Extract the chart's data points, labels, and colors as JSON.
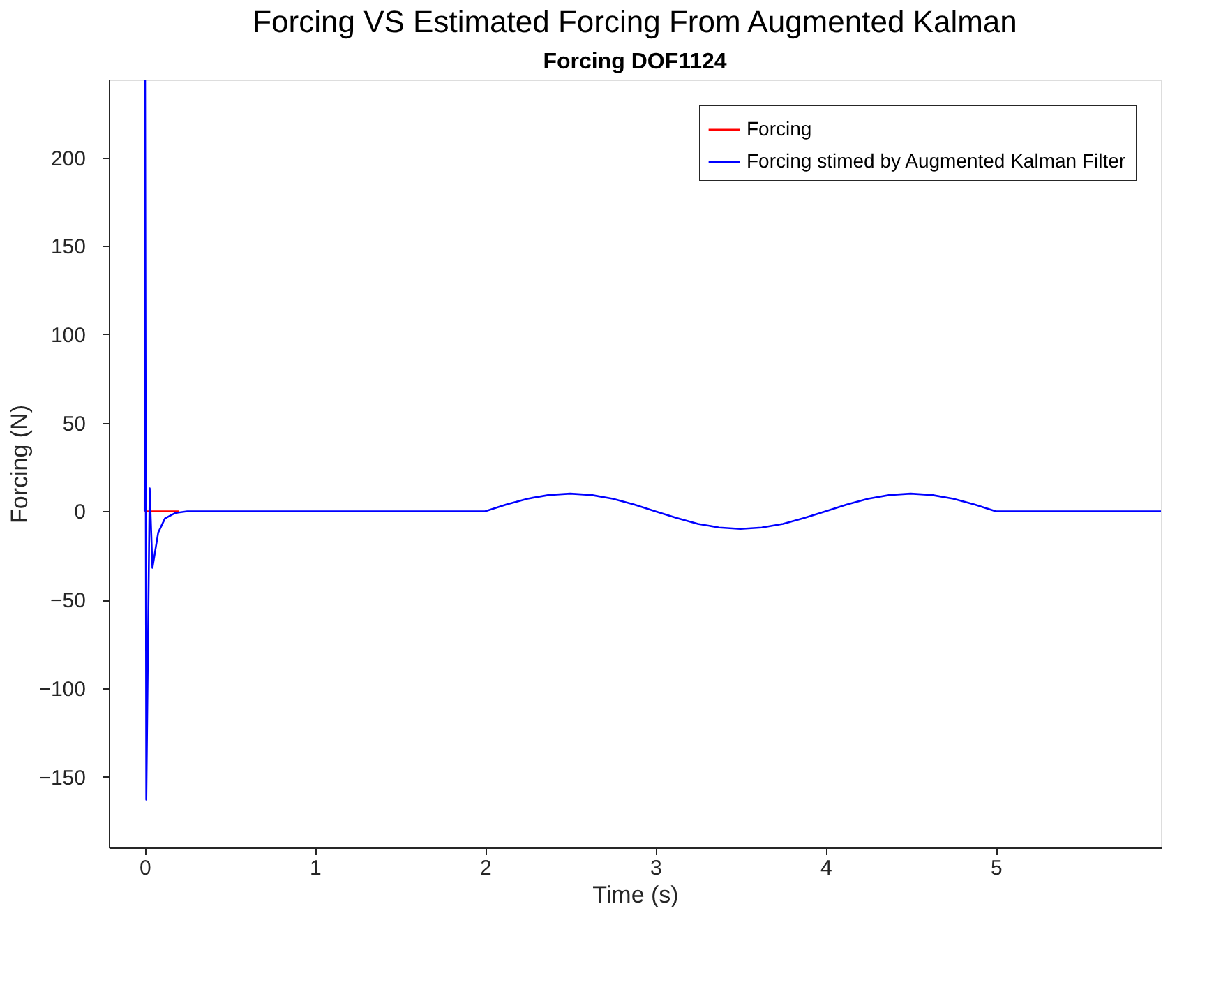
{
  "chart_data": {
    "type": "line",
    "title": "Forcing VS Estimated Forcing From Augmented Kalman",
    "subtitle": "Forcing DOF1124",
    "xlabel": "Time (s)",
    "ylabel": "Forcing (N)",
    "xlim": [
      -0.21,
      5.97
    ],
    "ylim": [
      -190,
      244
    ],
    "xticks": [
      0,
      1,
      2,
      3,
      4,
      5
    ],
    "yticks": [
      -150,
      -100,
      -50,
      0,
      50,
      100,
      150,
      200
    ],
    "grid": false,
    "legend": "top right",
    "line_style": "solid",
    "marker": "none",
    "series": [
      {
        "name": "Forcing",
        "color": "#ff0000",
        "x": [
          0,
          0.2
        ],
        "values": [
          0,
          0
        ]
      },
      {
        "name": "Forcing stimed by Augmented Kalman Filter",
        "color": "#0000ff",
        "x": [
          0,
          0.003,
          0.01,
          0.03,
          0.046,
          0.08,
          0.12,
          0.18,
          0.25,
          2,
          2.125,
          2.25,
          2.375,
          2.5,
          2.625,
          2.75,
          2.875,
          3,
          3.125,
          3.25,
          3.375,
          3.5,
          3.625,
          3.75,
          3.875,
          4,
          4.125,
          4.25,
          4.375,
          4.5,
          4.625,
          4.75,
          4.875,
          5,
          5.97
        ],
        "values": [
          0,
          244,
          -163,
          13,
          -32,
          -12,
          -4,
          -1,
          0,
          0,
          3.8,
          7.1,
          9.2,
          10,
          9.2,
          7.1,
          3.8,
          0,
          -3.8,
          -7.1,
          -9.2,
          -10,
          -9.2,
          -7.1,
          -3.8,
          0,
          3.8,
          7.1,
          9.2,
          10,
          9.2,
          7.1,
          3.8,
          0,
          0
        ]
      }
    ]
  }
}
